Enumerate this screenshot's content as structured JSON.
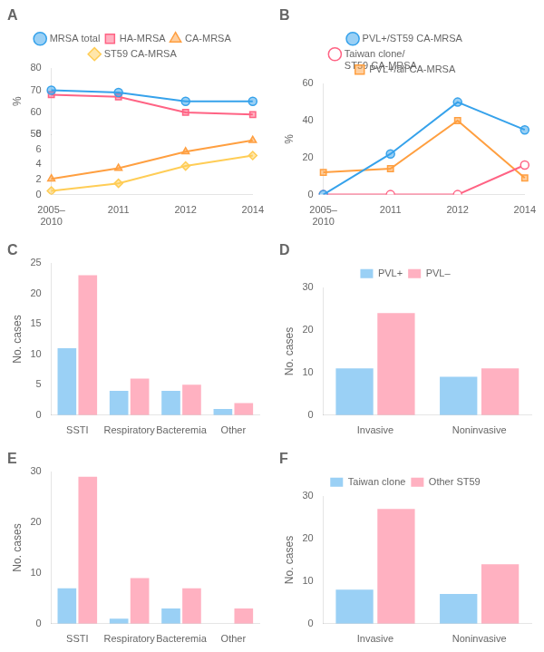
{
  "chart_data": [
    {
      "type": "line",
      "title": "A",
      "ylabel": "%",
      "categories": [
        "2005–\n2010",
        "2011",
        "2012",
        "2014"
      ],
      "series": [
        {
          "name": "MRSA total",
          "values": [
            70,
            69,
            65,
            65
          ],
          "marker": "circle",
          "axis": "y2"
        },
        {
          "name": "HA-MRSA",
          "values": [
            68,
            67,
            60,
            59
          ],
          "marker": "square",
          "axis": "y2"
        },
        {
          "name": "CA-MRSA",
          "values": [
            2.1,
            3.5,
            5.7,
            7.2
          ],
          "marker": "triangle"
        },
        {
          "name": "ST59 CA-MRSA",
          "values": [
            0.5,
            1.5,
            3.8,
            5.2
          ],
          "marker": "diamond"
        }
      ],
      "ylim": [
        0,
        8
      ],
      "yticks": [
        0,
        2,
        4,
        6,
        8
      ],
      "y2lim": [
        50,
        80
      ],
      "y2ticks": [
        50,
        60,
        70,
        80
      ],
      "grid": false,
      "legend": "top"
    },
    {
      "type": "line",
      "title": "B",
      "ylabel": "%",
      "categories": [
        "2005–\n2010",
        "2011",
        "2012",
        "2014"
      ],
      "series": [
        {
          "name": "PVL+/ST59 CA-MRSA",
          "values": [
            0,
            22,
            50,
            35
          ],
          "marker": "circle"
        },
        {
          "name": "Taiwan clone/\nST59 CA-MRSA",
          "values": [
            0,
            0,
            0,
            16
          ],
          "marker": "open_circle"
        },
        {
          "name": "PVL+/all CA-MRSA",
          "values": [
            12,
            14,
            40,
            9
          ],
          "marker": "square"
        }
      ],
      "ylim": [
        0,
        60
      ],
      "yticks": [
        0,
        20,
        40,
        60
      ],
      "grid": false,
      "legend": "top"
    },
    {
      "type": "bar",
      "title": "C",
      "ylabel": "No. cases",
      "categories": [
        "SSTI",
        "Respiratory",
        "Bacteremia",
        "Other"
      ],
      "series": [
        {
          "values": [
            11,
            4,
            4,
            1
          ]
        },
        {
          "values": [
            23,
            6,
            5,
            2
          ]
        }
      ],
      "ylim": [
        0,
        25
      ],
      "yticks": [
        0,
        5,
        10,
        15,
        20,
        25
      ],
      "grid": false
    },
    {
      "type": "bar",
      "title": "D",
      "ylabel": "No. cases",
      "categories": [
        "Invasive",
        "Noninvasive"
      ],
      "series": [
        {
          "name": "PVL+",
          "values": [
            11,
            9
          ]
        },
        {
          "name": "PVL–",
          "values": [
            24,
            11
          ]
        }
      ],
      "ylim": [
        0,
        30
      ],
      "yticks": [
        0,
        10,
        20,
        30
      ],
      "grid": false,
      "legend": "top"
    },
    {
      "type": "bar",
      "title": "E",
      "ylabel": "No. cases",
      "categories": [
        "SSTI",
        "Respiratory",
        "Bacteremia",
        "Other"
      ],
      "series": [
        {
          "values": [
            7,
            1,
            3,
            0
          ]
        },
        {
          "values": [
            29,
            9,
            7,
            3
          ]
        }
      ],
      "ylim": [
        0,
        30
      ],
      "yticks": [
        0,
        10,
        20,
        30
      ],
      "grid": false
    },
    {
      "type": "bar",
      "title": "F",
      "ylabel": "No. cases",
      "categories": [
        "Invasive",
        "Noninvasive"
      ],
      "series": [
        {
          "name": "Taiwan clone",
          "values": [
            8,
            7
          ]
        },
        {
          "name": "Other ST59",
          "values": [
            27,
            14
          ]
        }
      ],
      "ylim": [
        0,
        30
      ],
      "yticks": [
        0,
        10,
        20,
        30
      ],
      "grid": false,
      "legend": "top"
    }
  ]
}
